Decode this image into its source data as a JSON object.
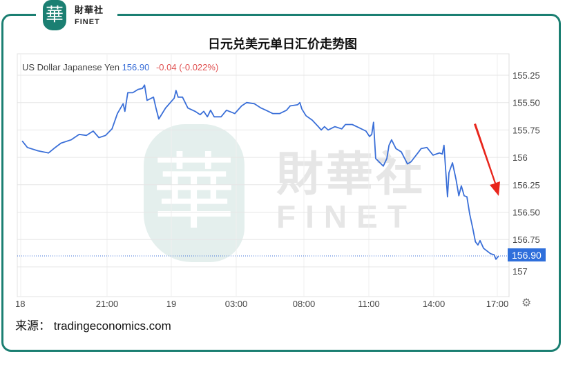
{
  "logo": {
    "mark": "華",
    "cn": "財華社",
    "en": "FINET"
  },
  "title": "日元兑美元单日汇价走势图",
  "legend": {
    "name": "US Dollar Japanese Yen",
    "price": "156.90",
    "change": "-0.04 (-0.022%)"
  },
  "watermark": {
    "mark": "華",
    "cn": "財華社",
    "en": "FINET"
  },
  "source": "来源： tradingeconomics.com",
  "settings_icon": "gear-icon",
  "colors": {
    "line": "#3a6fd8",
    "badge": "#2f6fdb",
    "arrow": "#e8261c",
    "frame": "#1b7f72",
    "change": "#e05050"
  },
  "chart_data": {
    "type": "line",
    "y_inverted": true,
    "ylim": [
      155.25,
      157
    ],
    "y_ticks": [
      "155.25",
      "155.50",
      "155.75",
      "156",
      "156.25",
      "156.50",
      "156.75",
      "157"
    ],
    "x_ticks": [
      {
        "label": "18",
        "time": "18:00"
      },
      {
        "label": "21:00",
        "time": "21:00"
      },
      {
        "label": "19",
        "time": "00:00"
      },
      {
        "label": "03:00",
        "time": "03:00"
      },
      {
        "label": "08:00",
        "time": "08:00"
      },
      {
        "label": "11:00",
        "time": "11:00"
      },
      {
        "label": "14:00",
        "time": "14:00"
      },
      {
        "label": "17:00",
        "time": "17:00"
      }
    ],
    "grid": true,
    "current_value": "156.90",
    "annotation": "red downward arrow",
    "series": [
      {
        "points": [
          [
            "18:03",
            155.85
          ],
          [
            "18:14",
            155.91
          ],
          [
            "18:36",
            155.94
          ],
          [
            "18:58",
            155.96
          ],
          [
            "19:09",
            155.92
          ],
          [
            "19:24",
            155.87
          ],
          [
            "19:45",
            155.84
          ],
          [
            "20:02",
            155.79
          ],
          [
            "20:17",
            155.8
          ],
          [
            "20:31",
            155.76
          ],
          [
            "20:43",
            155.82
          ],
          [
            "20:57",
            155.8
          ],
          [
            "21:14",
            155.74
          ],
          [
            "21:29",
            155.6
          ],
          [
            "21:45",
            155.51
          ],
          [
            "21:50",
            155.58
          ],
          [
            "21:58",
            155.41
          ],
          [
            "22:12",
            155.41
          ],
          [
            "22:27",
            155.38
          ],
          [
            "22:39",
            155.37
          ],
          [
            "22:45",
            155.34
          ],
          [
            "22:52",
            155.48
          ],
          [
            "23:10",
            155.45
          ],
          [
            "23:17",
            155.55
          ],
          [
            "23:25",
            155.65
          ],
          [
            "23:44",
            155.55
          ],
          [
            "00:08",
            155.46
          ],
          [
            "00:13",
            155.39
          ],
          [
            "00:19",
            155.45
          ],
          [
            "00:31",
            155.45
          ],
          [
            "00:46",
            155.55
          ],
          [
            "01:06",
            155.58
          ],
          [
            "01:20",
            155.61
          ],
          [
            "01:30",
            155.58
          ],
          [
            "01:40",
            155.63
          ],
          [
            "01:49",
            155.57
          ],
          [
            "01:59",
            155.63
          ],
          [
            "02:18",
            155.63
          ],
          [
            "02:33",
            155.57
          ],
          [
            "02:56",
            155.6
          ],
          [
            "03:24",
            155.53
          ],
          [
            "03:46",
            155.5
          ],
          [
            "04:20",
            155.51
          ],
          [
            "04:50",
            155.55
          ],
          [
            "05:12",
            155.57
          ],
          [
            "05:42",
            155.6
          ],
          [
            "06:13",
            155.6
          ],
          [
            "06:43",
            155.57
          ],
          [
            "06:59",
            155.53
          ],
          [
            "07:32",
            155.52
          ],
          [
            "07:42",
            155.5
          ],
          [
            "07:51",
            155.56
          ],
          [
            "08:06",
            155.62
          ],
          [
            "08:23",
            155.66
          ],
          [
            "08:40",
            155.72
          ],
          [
            "08:48",
            155.75
          ],
          [
            "08:57",
            155.72
          ],
          [
            "09:07",
            155.75
          ],
          [
            "09:26",
            155.72
          ],
          [
            "09:45",
            155.74
          ],
          [
            "09:55",
            155.7
          ],
          [
            "10:14",
            155.7
          ],
          [
            "10:33",
            155.73
          ],
          [
            "10:52",
            155.76
          ],
          [
            "11:02",
            155.81
          ],
          [
            "11:08",
            155.79
          ],
          [
            "11:13",
            155.68
          ],
          [
            "11:19",
            156.01
          ],
          [
            "11:40",
            156.08
          ],
          [
            "11:50",
            156.01
          ],
          [
            "11:56",
            155.89
          ],
          [
            "12:03",
            155.84
          ],
          [
            "12:15",
            155.92
          ],
          [
            "12:30",
            155.95
          ],
          [
            "12:47",
            156.06
          ],
          [
            "12:57",
            156.04
          ],
          [
            "13:16",
            155.96
          ],
          [
            "13:25",
            155.92
          ],
          [
            "13:41",
            155.91
          ],
          [
            "13:58",
            155.98
          ],
          [
            "14:16",
            155.96
          ],
          [
            "14:24",
            155.97
          ],
          [
            "14:29",
            155.89
          ],
          [
            "14:39",
            156.36
          ],
          [
            "14:43",
            156.14
          ],
          [
            "14:53",
            156.05
          ],
          [
            "15:03",
            156.2
          ],
          [
            "15:11",
            156.35
          ],
          [
            "15:18",
            156.26
          ],
          [
            "15:26",
            156.35
          ],
          [
            "15:34",
            156.36
          ],
          [
            "15:42",
            156.52
          ],
          [
            "15:50",
            156.64
          ],
          [
            "15:58",
            156.77
          ],
          [
            "16:05",
            156.8
          ],
          [
            "16:11",
            156.76
          ],
          [
            "16:21",
            156.83
          ],
          [
            "16:41",
            156.88
          ],
          [
            "16:51",
            156.89
          ],
          [
            "16:56",
            156.93
          ],
          [
            "17:04",
            156.9
          ]
        ]
      }
    ]
  }
}
